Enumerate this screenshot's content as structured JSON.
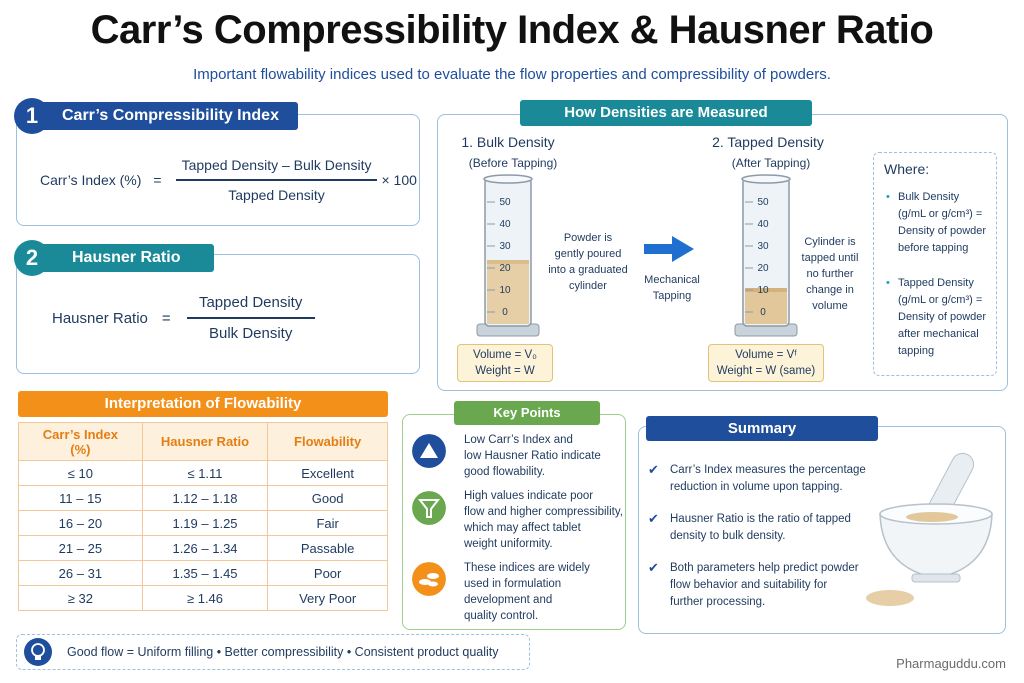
{
  "header": {
    "title": "Carr’s Compressibility Index & Hausner Ratio",
    "subtitle": "Important flowability indices used to evaluate the flow properties and compressibility of powders."
  },
  "carr": {
    "badge": "1",
    "heading": "Carr’s Compressibility Index",
    "lhs": "Carr’s Index (%)",
    "eq": "=",
    "numerator": "Tapped Density – Bulk Density",
    "denominator": "Tapped Density",
    "multiplier": "× 100"
  },
  "hausner": {
    "badge": "2",
    "heading": "Hausner Ratio",
    "lhs": "Hausner Ratio",
    "eq": "=",
    "numerator": "Tapped Density",
    "denominator": "Bulk Density"
  },
  "densities": {
    "heading": "How Densities are Measured",
    "bulk_title": "1. Bulk Density",
    "bulk_sub": "(Before Tapping)",
    "bulk_note": [
      "Powder is",
      "gently poured",
      "into a graduated",
      "cylinder"
    ],
    "bulk_volume": "Volume = V₀",
    "bulk_weight": "Weight = W",
    "arrow_label": [
      "Mechanical",
      "Tapping"
    ],
    "tapped_title": "2. Tapped Density",
    "tapped_sub": "(After Tapping)",
    "tapped_note": [
      "Cylinder is",
      "tapped until",
      "no further",
      "change in",
      "volume"
    ],
    "tapped_volume": "Volume = Vᶠ",
    "tapped_weight": "Weight = W (same)",
    "scale": [
      "50",
      "40",
      "30",
      "20",
      "10",
      "0"
    ],
    "where_title": "Where:",
    "where_items": [
      [
        "Bulk Density",
        "(g/mL or g/cm³) =",
        "Density of powder",
        "before tapping"
      ],
      [
        "Tapped Density",
        "(g/mL or g/cm³) =",
        "Density of powder",
        "after mechanical",
        "tapping"
      ]
    ]
  },
  "interpretation": {
    "heading": "Interpretation of Flowability",
    "columns": [
      "Carr’s Index (%)",
      "Hausner Ratio",
      "Flowability"
    ],
    "rows": [
      [
        "≤ 10",
        "≤ 1.11",
        "Excellent"
      ],
      [
        "11 – 15",
        "1.12 – 1.18",
        "Good"
      ],
      [
        "16 – 20",
        "1.19 – 1.25",
        "Fair"
      ],
      [
        "21 – 25",
        "1.26 – 1.34",
        "Passable"
      ],
      [
        "26 – 31",
        "1.35 – 1.45",
        "Poor"
      ],
      [
        "≥ 32",
        "≥ 1.46",
        "Very Poor"
      ]
    ]
  },
  "key_points": {
    "heading": "Key Points",
    "items": [
      [
        "Low Carr’s Index and",
        "low Hausner Ratio indicate",
        "good flowability."
      ],
      [
        "High values indicate poor",
        "flow and higher compressibility,",
        "which may affect tablet",
        "weight uniformity."
      ],
      [
        "These indices are widely",
        "used in formulation",
        "development and",
        "quality control."
      ]
    ]
  },
  "summary": {
    "heading": "Summary",
    "items": [
      [
        "Carr’s Index measures the percentage",
        "reduction in volume upon tapping."
      ],
      [
        "Hausner Ratio is the ratio of tapped",
        "density to bulk density."
      ],
      [
        "Both parameters help predict powder",
        "flow behavior and suitability for",
        "further processing."
      ]
    ]
  },
  "footer": {
    "text": "Good flow = Uniform filling  •  Better compressibility  •  Consistent product quality",
    "brand": "Pharmaguddu.com"
  },
  "colors": {
    "navy": "#1f4e9c",
    "teal": "#1a8a99",
    "orange": "#f39019",
    "green": "#6aa84f"
  }
}
